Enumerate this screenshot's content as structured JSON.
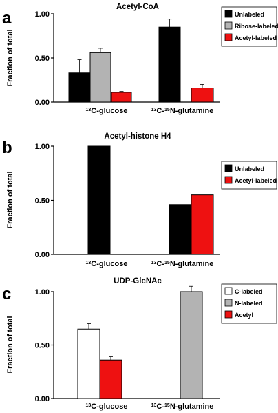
{
  "chart_data": [
    {
      "panel": "a",
      "type": "bar",
      "title": "Acetyl-CoA",
      "ylabel": "Fraction of total",
      "ylim": [
        0,
        1
      ],
      "yticks": [
        "0.00",
        "0.50",
        "1.00"
      ],
      "categories": [
        {
          "pre": "13",
          "mid": "C-glucose",
          "sup2": "",
          "post": ""
        },
        {
          "pre": "13",
          "mid": "C-",
          "sup2": "15",
          "post": "N-glutamine"
        }
      ],
      "legend_position": "top-right",
      "series": [
        {
          "name": "Unlabeled",
          "color": "#000000",
          "values": [
            0.33,
            0.85
          ],
          "errors": [
            0.15,
            0.09
          ]
        },
        {
          "name": "Ribose-labeled",
          "color": "#b3b3b3",
          "values": [
            0.56,
            null
          ],
          "errors": [
            0.05,
            null
          ]
        },
        {
          "name": "Acetyl-labeled",
          "color": "#ee1111",
          "values": [
            0.11,
            0.16
          ],
          "errors": [
            0.01,
            0.04
          ]
        }
      ]
    },
    {
      "panel": "b",
      "type": "bar",
      "title": "Acetyl-histone H4",
      "ylabel": "Fraction of total",
      "ylim": [
        0,
        1
      ],
      "yticks": [
        "0.00",
        "0.50",
        "1.00"
      ],
      "categories": [
        {
          "pre": "13",
          "mid": "C-glucose",
          "sup2": "",
          "post": ""
        },
        {
          "pre": "13",
          "mid": "C-",
          "sup2": "15",
          "post": "N-glutamine"
        }
      ],
      "legend_position": "top-right",
      "series": [
        {
          "name": "Unlabeled",
          "color": "#000000",
          "values": [
            1.0,
            0.46
          ],
          "errors": [
            null,
            null
          ]
        },
        {
          "name": "Acetyl-labeled",
          "color": "#ee1111",
          "values": [
            null,
            0.55
          ],
          "errors": [
            null,
            null
          ]
        }
      ]
    },
    {
      "panel": "c",
      "type": "bar",
      "title": "UDP-GlcNAc",
      "ylabel": "Fraction of total",
      "ylim": [
        0,
        1
      ],
      "yticks": [
        "0.00",
        "0.50",
        "1.00"
      ],
      "categories": [
        {
          "pre": "13",
          "mid": "C-glucose",
          "sup2": "",
          "post": ""
        },
        {
          "pre": "13",
          "mid": "C-",
          "sup2": "15",
          "post": "N-glutamine"
        }
      ],
      "legend_position": "top-right",
      "series": [
        {
          "name": "C-labeled",
          "color": "#ffffff",
          "values": [
            0.65,
            null
          ],
          "errors": [
            0.05,
            null
          ]
        },
        {
          "name": "N-labeled",
          "color": "#b3b3b3",
          "values": [
            null,
            1.0
          ],
          "errors": [
            null,
            0.05
          ]
        },
        {
          "name": "Acetyl",
          "color": "#ee1111",
          "values": [
            0.36,
            null
          ],
          "errors": [
            0.03,
            null
          ]
        }
      ]
    }
  ]
}
